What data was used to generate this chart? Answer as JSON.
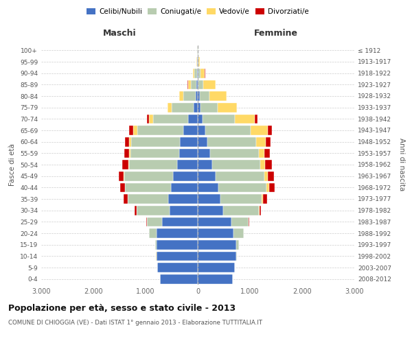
{
  "age_groups": [
    "0-4",
    "5-9",
    "10-14",
    "15-19",
    "20-24",
    "25-29",
    "30-34",
    "35-39",
    "40-44",
    "45-49",
    "50-54",
    "55-59",
    "60-64",
    "65-69",
    "70-74",
    "75-79",
    "80-84",
    "85-89",
    "90-94",
    "95-99",
    "100+"
  ],
  "birth_years": [
    "2008-2012",
    "2003-2007",
    "1998-2002",
    "1993-1997",
    "1988-1992",
    "1983-1987",
    "1978-1982",
    "1973-1977",
    "1968-1972",
    "1963-1967",
    "1958-1962",
    "1953-1957",
    "1948-1952",
    "1943-1947",
    "1938-1942",
    "1933-1937",
    "1928-1932",
    "1923-1927",
    "1918-1922",
    "1913-1917",
    "≤ 1912"
  ],
  "male_celibi": [
    720,
    770,
    790,
    790,
    790,
    690,
    540,
    560,
    510,
    480,
    390,
    360,
    340,
    280,
    180,
    80,
    45,
    25,
    15,
    8,
    5
  ],
  "male_coniugati": [
    5,
    5,
    5,
    25,
    140,
    280,
    630,
    780,
    880,
    930,
    920,
    930,
    930,
    880,
    680,
    420,
    230,
    110,
    45,
    8,
    5
  ],
  "male_vedovi": [
    2,
    2,
    2,
    5,
    5,
    5,
    5,
    5,
    10,
    12,
    18,
    25,
    45,
    75,
    75,
    75,
    75,
    55,
    28,
    5,
    2
  ],
  "male_divorziati": [
    0,
    0,
    0,
    2,
    5,
    8,
    35,
    75,
    85,
    95,
    125,
    95,
    85,
    75,
    45,
    10,
    5,
    5,
    2,
    0,
    0
  ],
  "female_nubili": [
    670,
    710,
    740,
    740,
    690,
    640,
    490,
    440,
    390,
    340,
    270,
    240,
    190,
    140,
    90,
    55,
    35,
    18,
    12,
    8,
    5
  ],
  "female_coniugate": [
    5,
    5,
    10,
    45,
    185,
    330,
    680,
    780,
    930,
    930,
    930,
    930,
    930,
    870,
    620,
    330,
    185,
    90,
    35,
    8,
    5
  ],
  "female_vedove": [
    2,
    2,
    2,
    5,
    5,
    5,
    8,
    25,
    45,
    70,
    90,
    110,
    185,
    330,
    380,
    360,
    330,
    230,
    90,
    18,
    5
  ],
  "female_divorziate": [
    0,
    0,
    0,
    2,
    5,
    8,
    35,
    85,
    105,
    125,
    125,
    105,
    95,
    85,
    55,
    8,
    8,
    5,
    2,
    0,
    0
  ],
  "color_celibi": "#4472C4",
  "color_coniugati": "#B8CCB0",
  "color_vedovi": "#FFD966",
  "color_divorziati": "#CC0000",
  "title": "Popolazione per età, sesso e stato civile - 2013",
  "subtitle": "COMUNE DI CHIOGGIA (VE) - Dati ISTAT 1° gennaio 2013 - Elaborazione TUTTITALIA.IT",
  "background_color": "#ffffff",
  "grid_color": "#cccccc"
}
